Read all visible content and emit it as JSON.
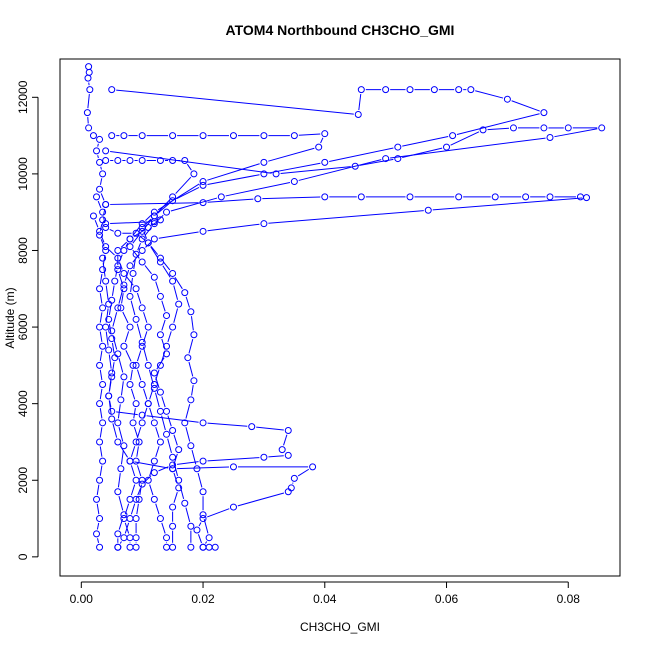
{
  "chart_data": {
    "type": "line",
    "title": "ATOM4 Northbound CH3CHO_GMI",
    "xlabel": "CH3CHO_GMI",
    "ylabel": "Altitude (m)",
    "xlim": [
      -0.0035,
      0.0885
    ],
    "ylim": [
      -500,
      13000
    ],
    "xticks": [
      0.0,
      0.02,
      0.04,
      0.06,
      0.08
    ],
    "xtick_labels": [
      "0.00",
      "0.02",
      "0.04",
      "0.06",
      "0.08"
    ],
    "yticks": [
      0,
      2000,
      4000,
      6000,
      8000,
      10000,
      12000
    ],
    "ytick_labels": [
      "0",
      "2000",
      "4000",
      "6000",
      "8000",
      "10000",
      "12000"
    ],
    "grid": false,
    "marker": "open-circle",
    "line_style": "solid-with-gaps-at-points",
    "series_color": "#0000ff",
    "series": [
      {
        "values": [
          [
            0.0012,
            12800
          ],
          [
            0.0013,
            12650
          ],
          [
            0.0011,
            12500
          ],
          [
            0.0014,
            12200
          ],
          [
            0.001,
            11600
          ],
          [
            0.0012,
            11200
          ],
          [
            0.002,
            11000
          ],
          [
            0.003,
            10900
          ],
          [
            0.0025,
            10600
          ],
          [
            0.003,
            10300
          ],
          [
            0.0035,
            10000
          ],
          [
            0.003,
            9600
          ],
          [
            0.004,
            9200
          ],
          [
            0.0035,
            8800
          ],
          [
            0.003,
            8400
          ],
          [
            0.004,
            8000
          ],
          [
            0.0035,
            7500
          ],
          [
            0.003,
            7000
          ],
          [
            0.0035,
            6500
          ],
          [
            0.003,
            6000
          ],
          [
            0.0035,
            5500
          ],
          [
            0.003,
            5000
          ],
          [
            0.0035,
            4500
          ],
          [
            0.003,
            4000
          ],
          [
            0.0035,
            3500
          ],
          [
            0.003,
            3000
          ],
          [
            0.0035,
            2500
          ],
          [
            0.003,
            2000
          ],
          [
            0.0025,
            1500
          ],
          [
            0.003,
            1000
          ],
          [
            0.0025,
            600
          ],
          [
            0.003,
            250
          ]
        ]
      },
      {
        "values": [
          [
            0.005,
            11000
          ],
          [
            0.007,
            11000
          ],
          [
            0.01,
            11000
          ],
          [
            0.015,
            11000
          ],
          [
            0.02,
            11000
          ],
          [
            0.025,
            11000
          ],
          [
            0.03,
            11000
          ],
          [
            0.035,
            11000
          ],
          [
            0.04,
            11050
          ],
          [
            0.039,
            10700
          ],
          [
            0.03,
            10300
          ],
          [
            0.02,
            9800
          ],
          [
            0.012,
            9000
          ],
          [
            0.01,
            8700
          ],
          [
            0.008,
            8300
          ],
          [
            0.006,
            8000
          ],
          [
            0.006,
            7500
          ],
          [
            0.007,
            7000
          ],
          [
            0.0065,
            6500
          ],
          [
            0.008,
            6000
          ],
          [
            0.007,
            5500
          ],
          [
            0.0085,
            5000
          ],
          [
            0.008,
            4500
          ],
          [
            0.009,
            4000
          ],
          [
            0.0085,
            3500
          ],
          [
            0.0095,
            3000
          ],
          [
            0.009,
            2500
          ],
          [
            0.01,
            2000
          ],
          [
            0.0095,
            1500
          ],
          [
            0.009,
            1000
          ],
          [
            0.009,
            500
          ],
          [
            0.009,
            250
          ]
        ]
      },
      {
        "values": [
          [
            0.004,
            10350
          ],
          [
            0.006,
            10350
          ],
          [
            0.008,
            10350
          ],
          [
            0.01,
            10350
          ],
          [
            0.013,
            10350
          ],
          [
            0.015,
            10350
          ],
          [
            0.017,
            10350
          ],
          [
            0.0185,
            10000
          ],
          [
            0.015,
            9400
          ],
          [
            0.012,
            8900
          ],
          [
            0.01,
            8500
          ],
          [
            0.008,
            8100
          ],
          [
            0.01,
            7700
          ],
          [
            0.012,
            7300
          ],
          [
            0.013,
            6800
          ],
          [
            0.014,
            6300
          ],
          [
            0.013,
            5800
          ],
          [
            0.014,
            5300
          ],
          [
            0.012,
            4800
          ],
          [
            0.013,
            4300
          ],
          [
            0.014,
            3800
          ],
          [
            0.015,
            3300
          ],
          [
            0.016,
            2800
          ],
          [
            0.015,
            2300
          ],
          [
            0.016,
            1800
          ],
          [
            0.015,
            1300
          ],
          [
            0.015,
            800
          ],
          [
            0.015,
            250
          ]
        ]
      },
      {
        "values": [
          [
            0.005,
            12200
          ],
          [
            0.0455,
            11550
          ],
          [
            0.046,
            12200
          ],
          [
            0.05,
            12200
          ],
          [
            0.054,
            12200
          ],
          [
            0.058,
            12200
          ],
          [
            0.062,
            12200
          ],
          [
            0.064,
            12200
          ],
          [
            0.07,
            11950
          ],
          [
            0.076,
            11600
          ],
          [
            0.061,
            11000
          ],
          [
            0.052,
            10700
          ],
          [
            0.04,
            10300
          ],
          [
            0.03,
            10000
          ],
          [
            0.02,
            9700
          ],
          [
            0.015,
            9300
          ],
          [
            0.012,
            8900
          ],
          [
            0.01,
            8600
          ],
          [
            0.011,
            8200
          ],
          [
            0.013,
            7800
          ],
          [
            0.015,
            7400
          ],
          [
            0.017,
            6900
          ],
          [
            0.018,
            6400
          ],
          [
            0.0185,
            5800
          ],
          [
            0.0175,
            5200
          ],
          [
            0.0185,
            4600
          ],
          [
            0.018,
            4100
          ],
          [
            0.017,
            3500
          ],
          [
            0.018,
            2900
          ],
          [
            0.019,
            2300
          ],
          [
            0.02,
            1700
          ],
          [
            0.02,
            1100
          ],
          [
            0.021,
            500
          ],
          [
            0.02,
            250
          ]
        ]
      },
      {
        "values": [
          [
            0.004,
            10600
          ],
          [
            0.032,
            10000
          ],
          [
            0.045,
            10200
          ],
          [
            0.052,
            10400
          ],
          [
            0.06,
            10700
          ],
          [
            0.066,
            11150
          ],
          [
            0.071,
            11200
          ],
          [
            0.076,
            11200
          ],
          [
            0.08,
            11200
          ],
          [
            0.0855,
            11200
          ],
          [
            0.077,
            10950
          ],
          [
            0.05,
            10400
          ],
          [
            0.035,
            9800
          ],
          [
            0.023,
            9400
          ],
          [
            0.014,
            9000
          ],
          [
            0.012,
            8700
          ],
          [
            0.01,
            8300
          ],
          [
            0.009,
            7900
          ],
          [
            0.0085,
            7400
          ],
          [
            0.008,
            6800
          ],
          [
            0.009,
            6200
          ],
          [
            0.01,
            5600
          ],
          [
            0.011,
            5000
          ],
          [
            0.012,
            4400
          ],
          [
            0.013,
            3800
          ],
          [
            0.014,
            3200
          ],
          [
            0.015,
            2600
          ],
          [
            0.016,
            2000
          ],
          [
            0.017,
            1400
          ],
          [
            0.018,
            800
          ],
          [
            0.018,
            250
          ]
        ]
      },
      {
        "values": [
          [
            0.004,
            9200
          ],
          [
            0.02,
            9250
          ],
          [
            0.029,
            9350
          ],
          [
            0.04,
            9400
          ],
          [
            0.046,
            9400
          ],
          [
            0.054,
            9400
          ],
          [
            0.062,
            9400
          ],
          [
            0.068,
            9400
          ],
          [
            0.073,
            9400
          ],
          [
            0.077,
            9400
          ],
          [
            0.082,
            9400
          ],
          [
            0.083,
            9380
          ],
          [
            0.057,
            9050
          ],
          [
            0.03,
            8700
          ],
          [
            0.02,
            8500
          ],
          [
            0.012,
            8300
          ],
          [
            0.01,
            8000
          ],
          [
            0.008,
            7600
          ],
          [
            0.007,
            7100
          ],
          [
            0.006,
            6500
          ],
          [
            0.005,
            5900
          ],
          [
            0.006,
            5300
          ],
          [
            0.007,
            4700
          ],
          [
            0.0065,
            4100
          ],
          [
            0.006,
            3500
          ],
          [
            0.007,
            2900
          ],
          [
            0.0065,
            2300
          ],
          [
            0.006,
            1700
          ],
          [
            0.007,
            1100
          ],
          [
            0.006,
            600
          ],
          [
            0.006,
            250
          ]
        ]
      },
      {
        "values": [
          [
            0.004,
            8700
          ],
          [
            0.012,
            8750
          ],
          [
            0.013,
            8800
          ],
          [
            0.011,
            8600
          ],
          [
            0.008,
            8300
          ],
          [
            0.007,
            8000
          ],
          [
            0.006,
            7600
          ],
          [
            0.0055,
            7200
          ],
          [
            0.005,
            6700
          ],
          [
            0.0045,
            6200
          ],
          [
            0.005,
            5700
          ],
          [
            0.0055,
            5200
          ],
          [
            0.005,
            4700
          ],
          [
            0.0045,
            4200
          ],
          [
            0.005,
            3800
          ],
          [
            0.01,
            3700
          ],
          [
            0.02,
            3500
          ],
          [
            0.028,
            3400
          ],
          [
            0.034,
            3300
          ],
          [
            0.033,
            2800
          ],
          [
            0.034,
            2650
          ],
          [
            0.03,
            2600
          ],
          [
            0.02,
            2500
          ],
          [
            0.015,
            2400
          ],
          [
            0.012,
            2200
          ],
          [
            0.01,
            1900
          ],
          [
            0.009,
            1500
          ],
          [
            0.008,
            1000
          ],
          [
            0.007,
            500
          ],
          [
            0.006,
            250
          ]
        ]
      },
      {
        "values": [
          [
            0.0035,
            7800
          ],
          [
            0.004,
            7200
          ],
          [
            0.0045,
            6600
          ],
          [
            0.004,
            6000
          ],
          [
            0.0045,
            5400
          ],
          [
            0.005,
            4800
          ],
          [
            0.0045,
            4200
          ],
          [
            0.005,
            3600
          ],
          [
            0.006,
            3000
          ],
          [
            0.008,
            2500
          ],
          [
            0.015,
            2300
          ],
          [
            0.025,
            2350
          ],
          [
            0.038,
            2350
          ],
          [
            0.035,
            2050
          ],
          [
            0.0345,
            1800
          ],
          [
            0.034,
            1700
          ],
          [
            0.025,
            1300
          ],
          [
            0.02,
            1000
          ],
          [
            0.019,
            700
          ],
          [
            0.02,
            250
          ],
          [
            0.021,
            250
          ],
          [
            0.022,
            250
          ]
        ]
      },
      {
        "values": [
          [
            0.0025,
            9400
          ],
          [
            0.0035,
            9000
          ],
          [
            0.004,
            8600
          ],
          [
            0.006,
            8450
          ],
          [
            0.009,
            8450
          ],
          [
            0.011,
            8200
          ],
          [
            0.013,
            7700
          ],
          [
            0.015,
            7200
          ],
          [
            0.016,
            6600
          ],
          [
            0.015,
            6000
          ],
          [
            0.014,
            5500
          ],
          [
            0.013,
            5000
          ],
          [
            0.012,
            4500
          ],
          [
            0.011,
            4000
          ],
          [
            0.012,
            3500
          ],
          [
            0.013,
            3000
          ],
          [
            0.012,
            2500
          ],
          [
            0.011,
            2000
          ],
          [
            0.012,
            1500
          ],
          [
            0.013,
            1000
          ],
          [
            0.014,
            500
          ],
          [
            0.014,
            250
          ]
        ]
      },
      {
        "values": [
          [
            0.002,
            8900
          ],
          [
            0.003,
            8500
          ],
          [
            0.004,
            8100
          ],
          [
            0.006,
            7800
          ],
          [
            0.007,
            7400
          ],
          [
            0.009,
            7000
          ],
          [
            0.01,
            6500
          ],
          [
            0.011,
            6000
          ],
          [
            0.01,
            5500
          ],
          [
            0.009,
            5000
          ],
          [
            0.01,
            4500
          ],
          [
            0.011,
            4000
          ],
          [
            0.01,
            3500
          ],
          [
            0.009,
            3000
          ],
          [
            0.008,
            2500
          ],
          [
            0.009,
            2000
          ],
          [
            0.008,
            1500
          ],
          [
            0.007,
            1000
          ],
          [
            0.008,
            500
          ],
          [
            0.008,
            250
          ]
        ]
      }
    ]
  }
}
